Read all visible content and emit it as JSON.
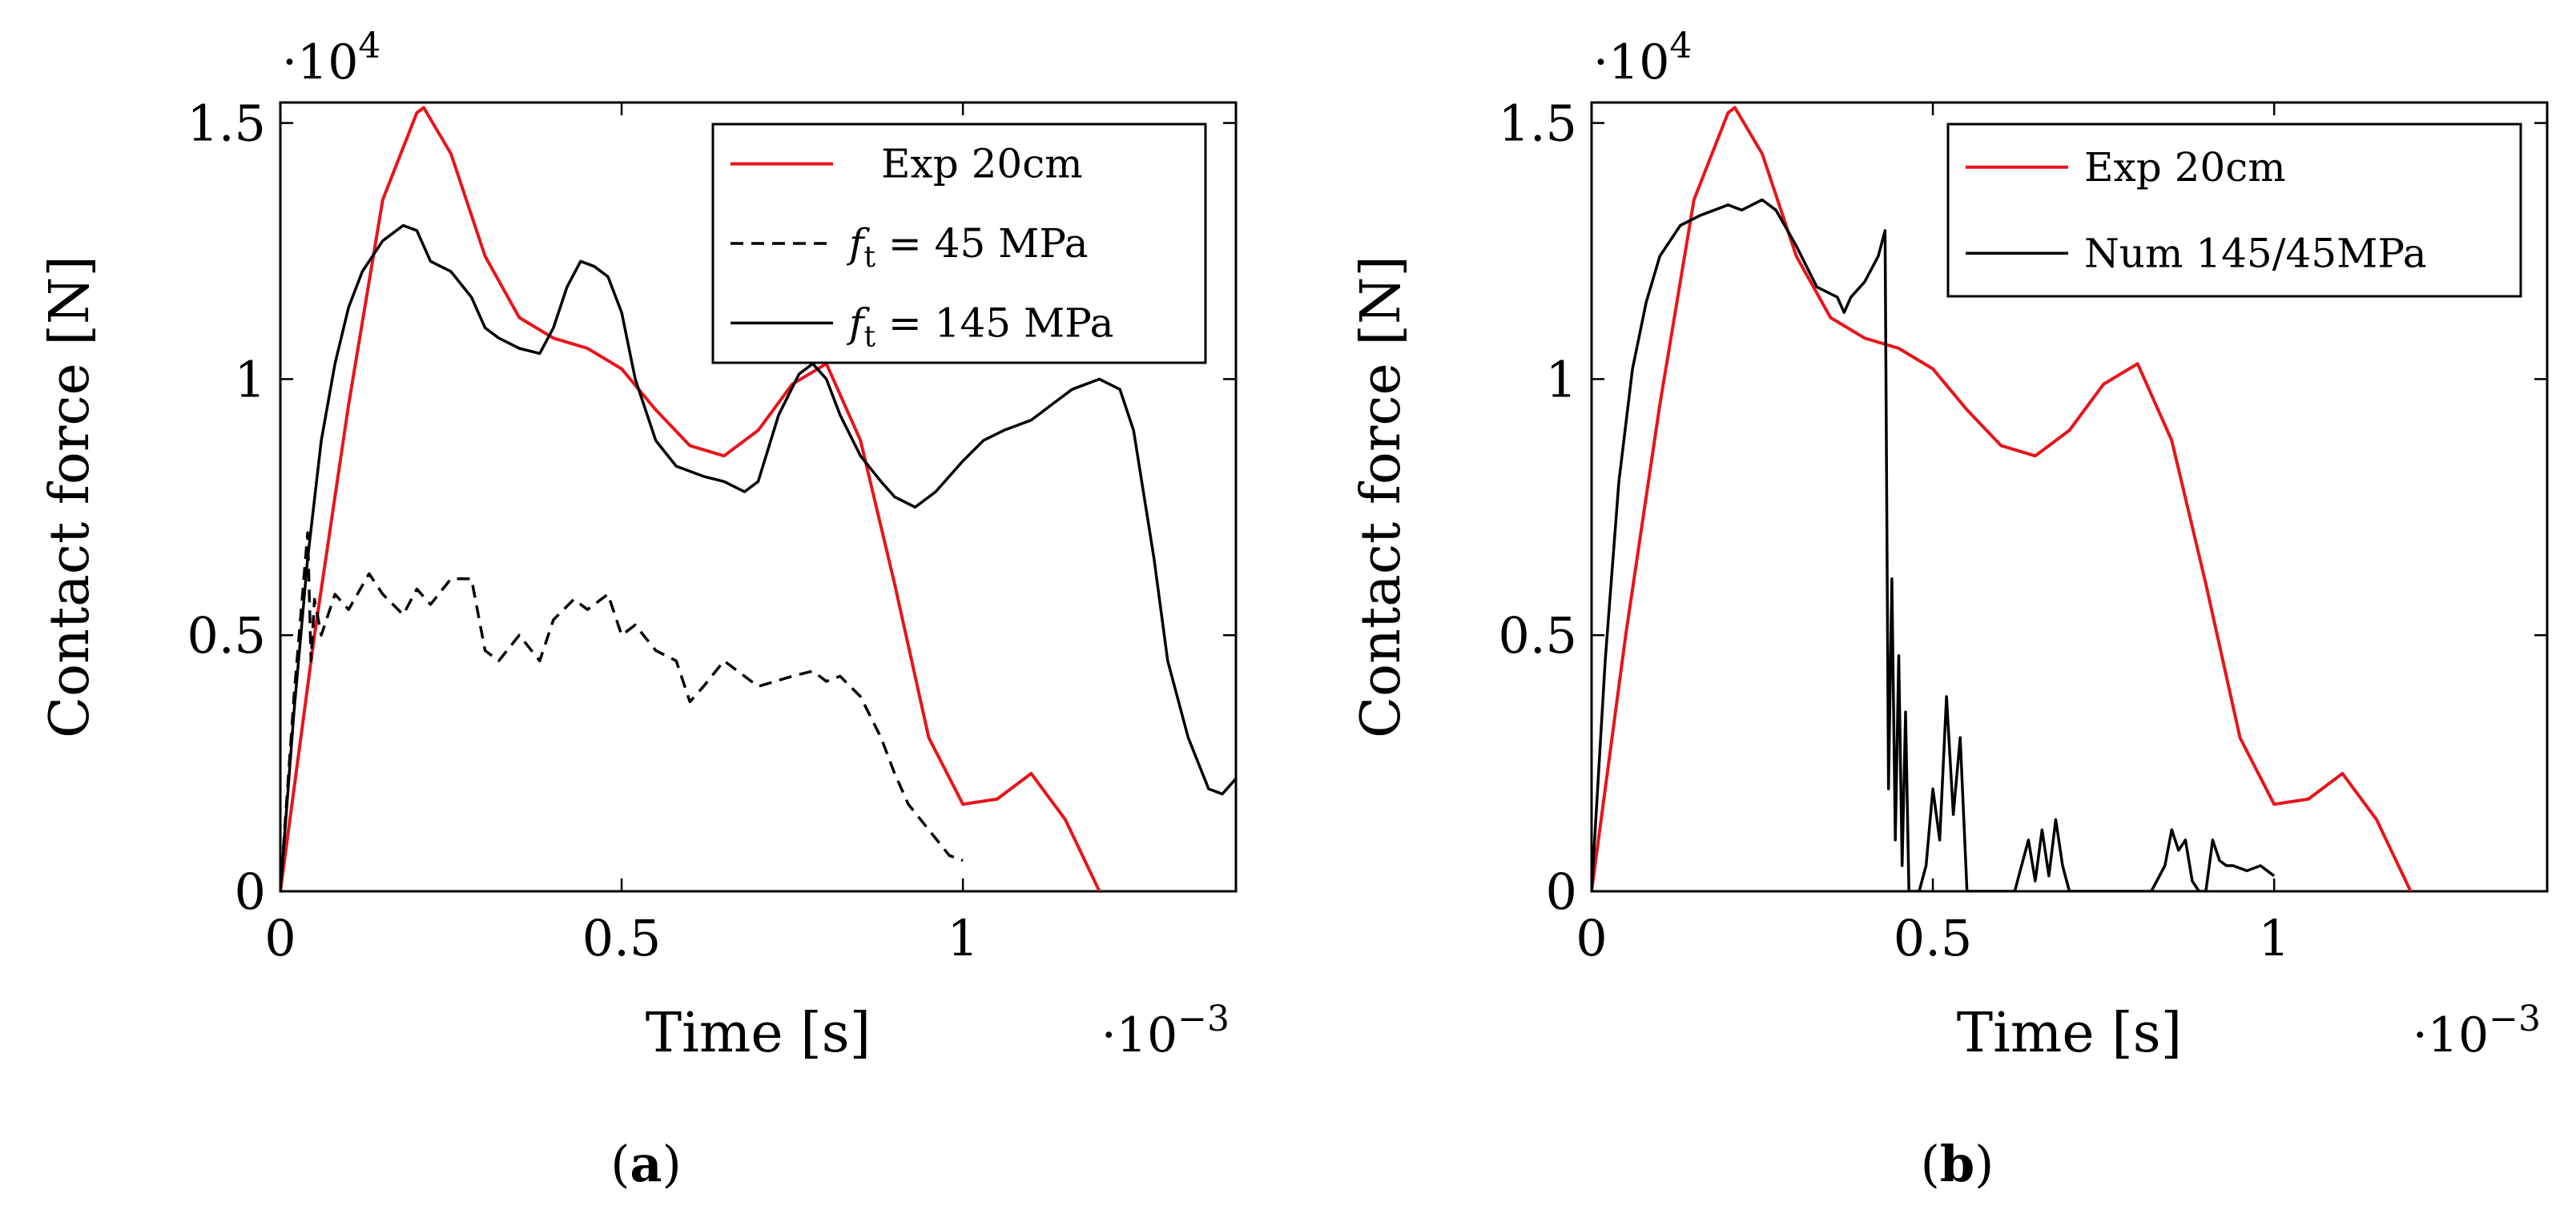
{
  "colors": {
    "experiment": "#e8141b",
    "numeric": "#000000",
    "axes": "#000000",
    "legend_border": "#000000"
  },
  "chart_data": [
    {
      "type": "line",
      "caption": {
        "open": "(",
        "letter": "a",
        "close": ")"
      },
      "xlabel": "Time [s]",
      "ylabel": "Contact force [N]",
      "x_multiplier": {
        "base": "·10",
        "exp": "−3"
      },
      "y_multiplier": {
        "base": "·10",
        "exp": "4"
      },
      "xlim": [
        0,
        1.4
      ],
      "ylim": [
        0,
        1.54
      ],
      "xticks": [
        0,
        0.5,
        1
      ],
      "xtick_labels": [
        "0",
        "0.5",
        "1"
      ],
      "yticks": [
        0,
        0.5,
        1,
        1.5
      ],
      "ytick_labels": [
        "0",
        "0.5",
        "1",
        "1.5"
      ],
      "legend": "top-right",
      "series": [
        {
          "name": "Exp 20cm",
          "label": {
            "plain": "Exp 20cm"
          },
          "style": "solid",
          "color": "#e8141b",
          "x": [
            0,
            0.05,
            0.1,
            0.15,
            0.2,
            0.21,
            0.25,
            0.3,
            0.35,
            0.4,
            0.45,
            0.5,
            0.55,
            0.6,
            0.65,
            0.7,
            0.75,
            0.8,
            0.85,
            0.9,
            0.95,
            1.0,
            1.05,
            1.1,
            1.15,
            1.2
          ],
          "y": [
            0,
            0.5,
            0.95,
            1.35,
            1.52,
            1.53,
            1.44,
            1.24,
            1.12,
            1.08,
            1.06,
            1.02,
            0.94,
            0.87,
            0.85,
            0.9,
            0.99,
            1.03,
            0.88,
            0.6,
            0.3,
            0.17,
            0.18,
            0.23,
            0.14,
            0.0
          ]
        },
        {
          "name": "f_t = 45 MPa",
          "label": {
            "var": "f",
            "sub": "t",
            "rest": " = 45 MPa"
          },
          "style": "dashed",
          "color": "#000000",
          "x": [
            0,
            0.02,
            0.04,
            0.045,
            0.05,
            0.06,
            0.08,
            0.1,
            0.13,
            0.15,
            0.18,
            0.2,
            0.22,
            0.25,
            0.28,
            0.3,
            0.32,
            0.35,
            0.38,
            0.4,
            0.43,
            0.45,
            0.48,
            0.5,
            0.52,
            0.55,
            0.58,
            0.6,
            0.62,
            0.65,
            0.68,
            0.7,
            0.75,
            0.78,
            0.8,
            0.82,
            0.85,
            0.88,
            0.9,
            0.92,
            0.95,
            0.98,
            1.0
          ],
          "y": [
            0,
            0.38,
            0.7,
            0.45,
            0.57,
            0.5,
            0.58,
            0.55,
            0.62,
            0.58,
            0.54,
            0.59,
            0.56,
            0.61,
            0.61,
            0.47,
            0.45,
            0.5,
            0.45,
            0.53,
            0.57,
            0.55,
            0.58,
            0.5,
            0.52,
            0.47,
            0.45,
            0.37,
            0.4,
            0.45,
            0.42,
            0.4,
            0.42,
            0.43,
            0.41,
            0.42,
            0.38,
            0.3,
            0.23,
            0.17,
            0.12,
            0.07,
            0.06
          ]
        },
        {
          "name": "f_t = 145 MPa",
          "label": {
            "var": "f",
            "sub": "t",
            "rest": " = 145 MPa"
          },
          "style": "solid",
          "color": "#000000",
          "x": [
            0,
            0.02,
            0.04,
            0.06,
            0.08,
            0.1,
            0.12,
            0.15,
            0.18,
            0.2,
            0.22,
            0.25,
            0.28,
            0.3,
            0.32,
            0.35,
            0.38,
            0.4,
            0.42,
            0.44,
            0.46,
            0.48,
            0.5,
            0.52,
            0.55,
            0.58,
            0.6,
            0.62,
            0.65,
            0.68,
            0.7,
            0.73,
            0.76,
            0.78,
            0.8,
            0.82,
            0.85,
            0.88,
            0.9,
            0.93,
            0.96,
            1.0,
            1.03,
            1.06,
            1.1,
            1.13,
            1.16,
            1.2,
            1.23,
            1.25,
            1.28,
            1.3,
            1.33,
            1.36,
            1.38,
            1.4
          ],
          "y": [
            0,
            0.35,
            0.65,
            0.88,
            1.03,
            1.14,
            1.21,
            1.27,
            1.3,
            1.29,
            1.23,
            1.21,
            1.16,
            1.1,
            1.08,
            1.06,
            1.05,
            1.1,
            1.18,
            1.23,
            1.22,
            1.2,
            1.13,
            1.0,
            0.88,
            0.83,
            0.82,
            0.81,
            0.8,
            0.78,
            0.8,
            0.93,
            1.01,
            1.03,
            1.0,
            0.93,
            0.85,
            0.8,
            0.77,
            0.75,
            0.78,
            0.84,
            0.88,
            0.9,
            0.92,
            0.95,
            0.98,
            1.0,
            0.98,
            0.9,
            0.65,
            0.45,
            0.3,
            0.2,
            0.19,
            0.22
          ]
        }
      ]
    },
    {
      "type": "line",
      "caption": {
        "open": "(",
        "letter": "b",
        "close": ")"
      },
      "xlabel": "Time [s]",
      "ylabel": "Contact force [N]",
      "x_multiplier": {
        "base": "·10",
        "exp": "−3"
      },
      "y_multiplier": {
        "base": "·10",
        "exp": "4"
      },
      "xlim": [
        0,
        1.4
      ],
      "ylim": [
        0,
        1.54
      ],
      "xticks": [
        0,
        0.5,
        1
      ],
      "xtick_labels": [
        "0",
        "0.5",
        "1"
      ],
      "yticks": [
        0,
        0.5,
        1,
        1.5
      ],
      "ytick_labels": [
        "0",
        "0.5",
        "1",
        "1.5"
      ],
      "legend": "top-right",
      "series": [
        {
          "name": "Exp 20cm",
          "label": {
            "plain": "Exp 20cm"
          },
          "style": "solid",
          "color": "#e8141b",
          "x": [
            0,
            0.05,
            0.1,
            0.15,
            0.2,
            0.21,
            0.25,
            0.3,
            0.35,
            0.4,
            0.45,
            0.5,
            0.55,
            0.6,
            0.65,
            0.7,
            0.75,
            0.8,
            0.85,
            0.9,
            0.95,
            1.0,
            1.05,
            1.1,
            1.15,
            1.2
          ],
          "y": [
            0,
            0.5,
            0.95,
            1.35,
            1.52,
            1.53,
            1.44,
            1.24,
            1.12,
            1.08,
            1.06,
            1.02,
            0.94,
            0.87,
            0.85,
            0.9,
            0.99,
            1.03,
            0.88,
            0.6,
            0.3,
            0.17,
            0.18,
            0.23,
            0.14,
            0.0
          ]
        },
        {
          "name": "Num 145/45MPa",
          "label": {
            "plain": "Num 145/45MPa"
          },
          "style": "solid",
          "color": "#000000",
          "x": [
            0,
            0.02,
            0.04,
            0.06,
            0.08,
            0.1,
            0.13,
            0.16,
            0.18,
            0.2,
            0.22,
            0.25,
            0.27,
            0.3,
            0.33,
            0.36,
            0.37,
            0.38,
            0.4,
            0.42,
            0.43,
            0.435,
            0.44,
            0.445,
            0.45,
            0.455,
            0.46,
            0.465,
            0.47,
            0.48,
            0.49,
            0.5,
            0.51,
            0.52,
            0.53,
            0.54,
            0.55,
            0.56,
            0.57,
            0.58,
            0.6,
            0.62,
            0.63,
            0.64,
            0.65,
            0.66,
            0.67,
            0.68,
            0.69,
            0.7,
            0.72,
            0.74,
            0.75,
            0.76,
            0.77,
            0.78,
            0.79,
            0.8,
            0.82,
            0.84,
            0.85,
            0.86,
            0.87,
            0.88,
            0.89,
            0.9,
            0.91,
            0.92,
            0.93,
            0.94,
            0.96,
            0.98,
            1.0
          ],
          "y": [
            0,
            0.45,
            0.8,
            1.02,
            1.15,
            1.24,
            1.3,
            1.32,
            1.33,
            1.34,
            1.33,
            1.35,
            1.33,
            1.26,
            1.18,
            1.16,
            1.13,
            1.16,
            1.19,
            1.24,
            1.29,
            0.2,
            0.61,
            0.1,
            0.46,
            0.05,
            0.35,
            0.0,
            0.0,
            0.0,
            0.05,
            0.2,
            0.1,
            0.38,
            0.15,
            0.3,
            0.0,
            0.0,
            0.0,
            0.0,
            0.0,
            0.0,
            0.05,
            0.1,
            0.02,
            0.12,
            0.03,
            0.14,
            0.05,
            0.0,
            0.0,
            0.0,
            0.0,
            0.0,
            0.0,
            0.0,
            0.0,
            0.0,
            0.0,
            0.05,
            0.12,
            0.08,
            0.1,
            0.02,
            0.0,
            0.0,
            0.1,
            0.06,
            0.05,
            0.05,
            0.04,
            0.05,
            0.03
          ]
        }
      ]
    }
  ]
}
